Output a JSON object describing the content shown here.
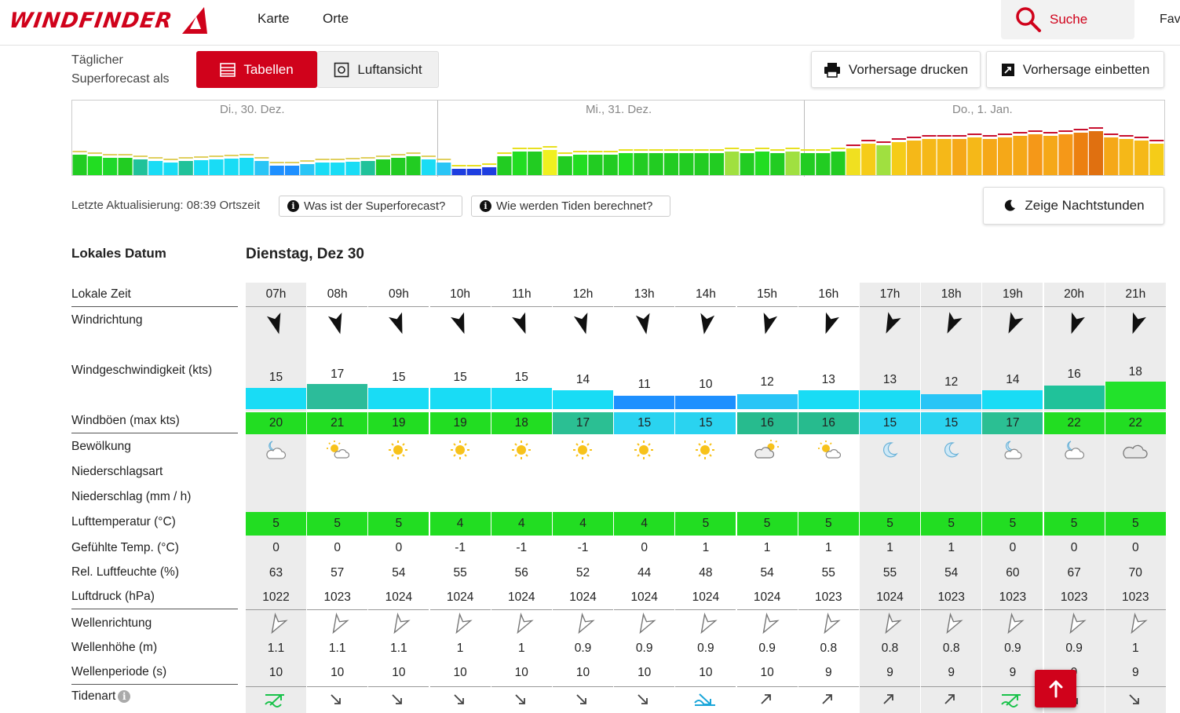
{
  "header": {
    "logo_text": "WINDFINDER",
    "nav": [
      "Karte",
      "Orte"
    ],
    "search_label": "Suche",
    "fav_label": "Fav"
  },
  "toolbar": {
    "daily_label": "Täglicher Superforecast als",
    "tab_tables": "Tabellen",
    "tab_aerial": "Luftansicht",
    "print_label": "Vorhersage drucken",
    "embed_label": "Vorhersage einbetten"
  },
  "overview": {
    "days": [
      "Di., 30. Dez.",
      "Mi., 31. Dez.",
      "Do., 1. Jan."
    ]
  },
  "info": {
    "last_update": "Letzte Aktualisierung: 08:39 Ortszeit",
    "superforecast_q": "Was ist der Superforecast?",
    "tides_q": "Wie werden Tiden berechnet?",
    "night_label": "Zeige Nachtstunden"
  },
  "table": {
    "local_date_label": "Lokales Datum",
    "day_title": "Dienstag, Dez 30",
    "labels": {
      "time": "Lokale Zeit",
      "winddir": "Windrichtung",
      "windspeed": "Windgeschwindigkeit (kts)",
      "gusts": "Windböen (max kts)",
      "clouds": "Bewölkung",
      "preciptype": "Niederschlagsart",
      "precip": "Niederschlag (mm / h)",
      "airtemp": "Lufttemperatur (°C)",
      "feels": "Gefühlte Temp. (°C)",
      "humidity": "Rel. Luftfeuchte (%)",
      "pressure": "Luftdruck (hPa)",
      "wavedir": "Wellenrichtung",
      "waveheight": "Wellenhöhe (m)",
      "waveperiod": "Wellenperiode (s)",
      "tide": "Tidenart"
    },
    "hours": [
      "07h",
      "08h",
      "09h",
      "10h",
      "11h",
      "12h",
      "13h",
      "14h",
      "15h",
      "16h",
      "17h",
      "18h",
      "19h",
      "20h",
      "21h"
    ],
    "windspeed": [
      "15",
      "17",
      "15",
      "15",
      "15",
      "14",
      "11",
      "10",
      "12",
      "13",
      "13",
      "12",
      "14",
      "16",
      "18"
    ],
    "gusts": [
      "20",
      "21",
      "19",
      "19",
      "18",
      "17",
      "15",
      "15",
      "16",
      "16",
      "15",
      "15",
      "17",
      "22",
      "22"
    ],
    "clouds": [
      "partly-cloudy-night-icon",
      "sun-cloud-icon",
      "sun-icon",
      "sun-icon",
      "sun-icon",
      "sun-icon",
      "sun-icon",
      "sun-icon",
      "cloud-sun-icon",
      "sun-cloud-icon",
      "moon-icon",
      "moon-icon",
      "moon-cloud-icon",
      "partly-cloudy-night-icon",
      "cloud-icon"
    ],
    "airtemp": [
      "5",
      "5",
      "5",
      "4",
      "4",
      "4",
      "4",
      "5",
      "5",
      "5",
      "5",
      "5",
      "5",
      "5",
      "5"
    ],
    "feels": [
      "0",
      "0",
      "0",
      "-1",
      "-1",
      "-1",
      "0",
      "1",
      "1",
      "1",
      "1",
      "1",
      "0",
      "0",
      "0"
    ],
    "humidity": [
      "63",
      "57",
      "54",
      "55",
      "56",
      "52",
      "44",
      "48",
      "54",
      "55",
      "55",
      "54",
      "60",
      "67",
      "70"
    ],
    "pressure": [
      "1022",
      "1023",
      "1024",
      "1024",
      "1024",
      "1024",
      "1024",
      "1024",
      "1024",
      "1023",
      "1024",
      "1023",
      "1023",
      "1023",
      "1023"
    ],
    "waveheight": [
      "1.1",
      "1.1",
      "1.1",
      "1",
      "1",
      "0.9",
      "0.9",
      "0.9",
      "0.9",
      "0.8",
      "0.8",
      "0.8",
      "0.9",
      "0.9",
      "1"
    ],
    "waveperiod": [
      "10",
      "10",
      "10",
      "10",
      "10",
      "10",
      "10",
      "10",
      "10",
      "9",
      "9",
      "9",
      "9",
      "9",
      "9"
    ],
    "tide": [
      "high-tide-icon",
      "falling-tide-icon",
      "falling-tide-icon",
      "falling-tide-icon",
      "falling-tide-icon",
      "falling-tide-icon",
      "falling-tide-icon",
      "low-tide-icon",
      "rising-tide-icon",
      "rising-tide-icon",
      "rising-tide-icon",
      "rising-tide-icon",
      "high-tide-icon",
      "falling-tide-icon",
      "falling-tide-icon"
    ],
    "night_hours": [
      0,
      10,
      11,
      12,
      13,
      14
    ]
  },
  "colors": {
    "brand": "#d0021b",
    "night_bg": "#ececec"
  }
}
